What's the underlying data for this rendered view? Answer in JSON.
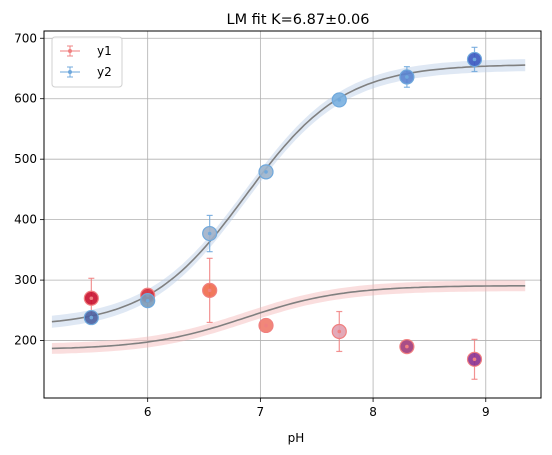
{
  "chart_data": {
    "type": "scatter",
    "title": "LM fit K=6.87±0.06",
    "xlabel": "pH",
    "ylabel": "",
    "xlim": [
      5.08,
      9.49
    ],
    "ylim": [
      105,
      712
    ],
    "xticks": [
      6,
      7,
      8,
      9
    ],
    "yticks": [
      200,
      300,
      400,
      500,
      600,
      700
    ],
    "grid": true,
    "legend_position": "top-left",
    "x": [
      5.5,
      6.0,
      6.55,
      7.05,
      7.7,
      8.3,
      8.9
    ],
    "series": [
      {
        "name": "y1",
        "color": "#f08080",
        "marker_colors": [
          "#c8102e",
          "#d52a3a",
          "#f06a4a",
          "#f07a6a",
          "#e0a0b0",
          "#a03a7a",
          "#8a3090"
        ],
        "values": [
          270,
          275,
          283,
          225,
          215,
          190,
          169
        ],
        "errors": [
          33,
          0,
          53,
          0,
          33,
          0,
          33
        ],
        "fit": {
          "K": 6.87,
          "low": 185,
          "high": 291,
          "band": 9,
          "line_color": "#808080",
          "band_color": "#f4b6b6"
        }
      },
      {
        "name": "y2",
        "color": "#6fa8dc",
        "marker_colors": [
          "#4a5fa0",
          "#7a9ab8",
          "#a0b0c8",
          "#9cb4cc",
          "#7ab0e0",
          "#5a84d0",
          "#3a58c0"
        ],
        "values": [
          238,
          266,
          377,
          479,
          598,
          636,
          665
        ],
        "errors": [
          0,
          0,
          30,
          0,
          0,
          17,
          20
        ],
        "fit": {
          "K": 6.87,
          "low": 223,
          "high": 657,
          "band": 10,
          "line_color": "#808080",
          "band_color": "#b8cce6"
        }
      }
    ],
    "fit_x_range": [
      5.15,
      9.35
    ]
  }
}
